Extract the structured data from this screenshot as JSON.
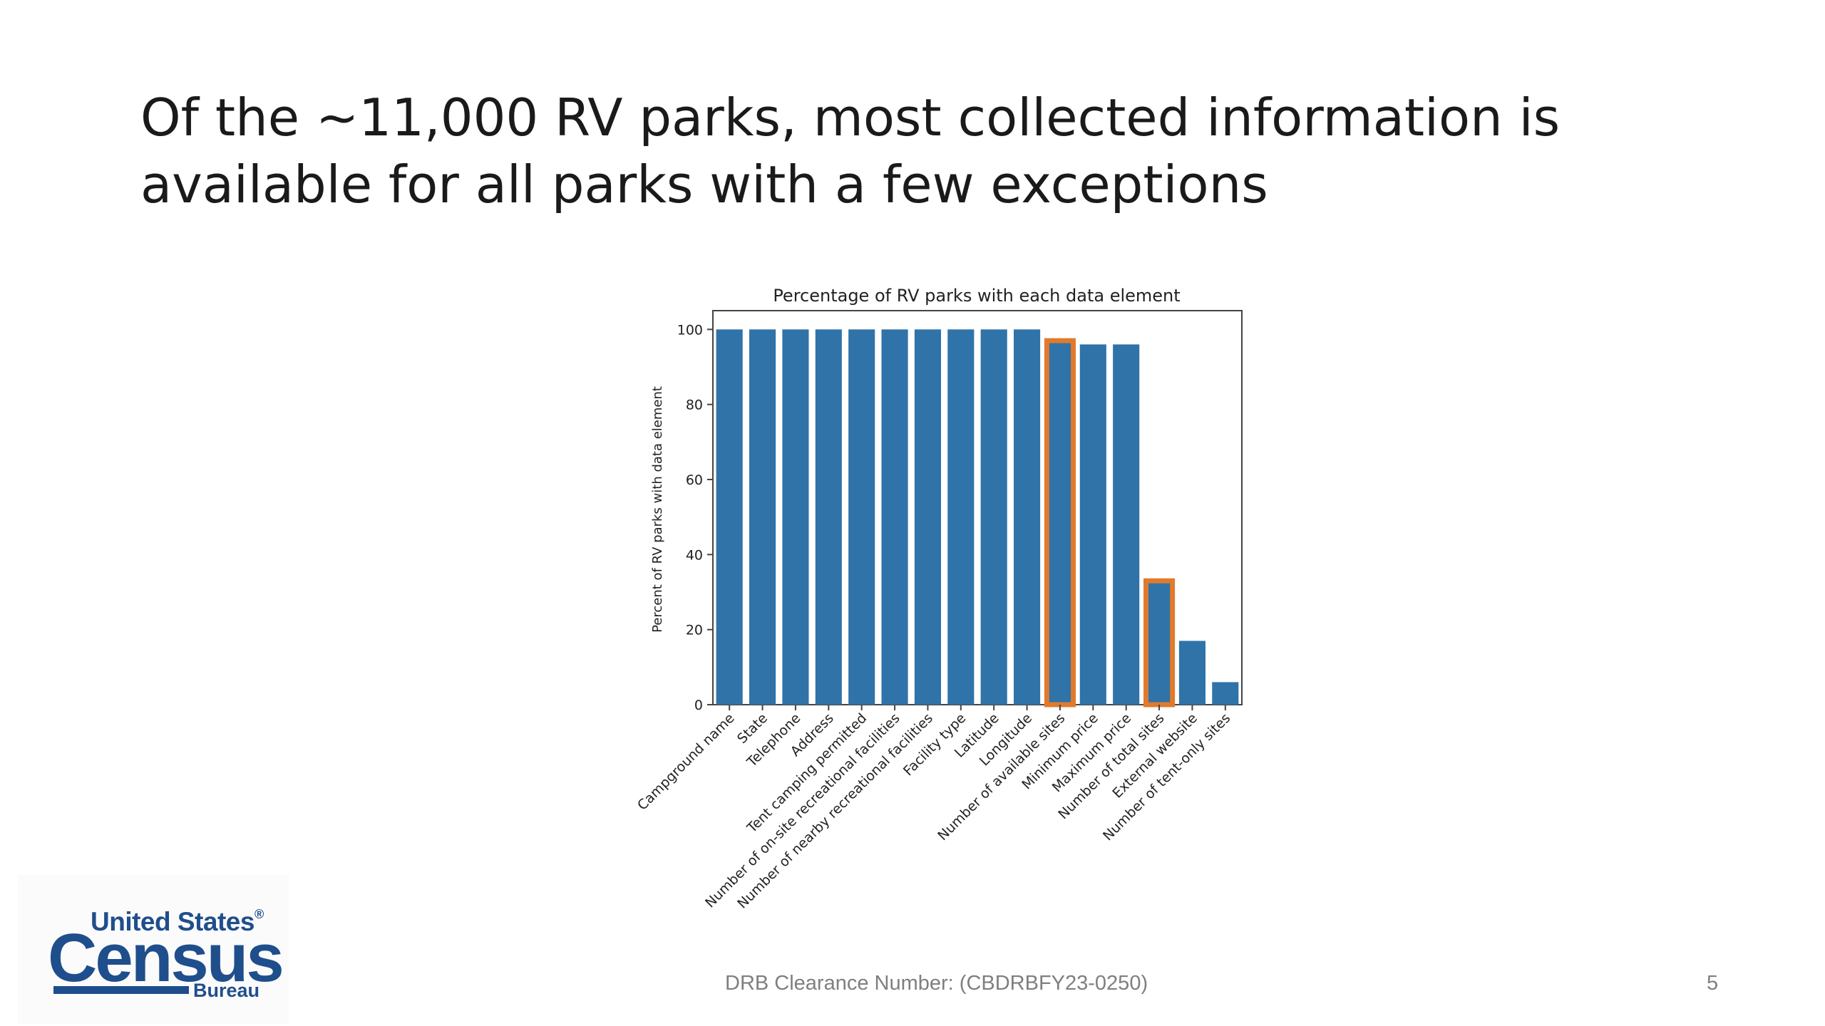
{
  "slide": {
    "title_line1": "Of the ~11,000 RV parks, most collected information is",
    "title_line2": "available for all parks with a few exceptions",
    "clearance": "DRB Clearance Number: (CBDRBFY23-0250)",
    "page_number": "5"
  },
  "logo": {
    "top_text": "United States",
    "registered_mark": "®",
    "main_text": "Census",
    "sub_text": "Bureau"
  },
  "colors": {
    "bar": "#2f73a8",
    "highlight": "#e07a2d",
    "logo": "#1f4e8c"
  },
  "chart_data": {
    "type": "bar",
    "title": "Percentage of RV parks with each data element",
    "xlabel": "",
    "ylabel": "Percent of RV parks with data element",
    "ylim": [
      0,
      105
    ],
    "yticks": [
      0,
      20,
      40,
      60,
      80,
      100
    ],
    "grid": false,
    "categories": [
      "Campground name",
      "State",
      "Telephone",
      "Address",
      "Tent camping permitted",
      "Number of on-site recreational facilities",
      "Number of nearby recreational facilities",
      "Facility type",
      "Latitude",
      "Longitude",
      "Number of available sites",
      "Minimum price",
      "Maximum price",
      "Number of total sites",
      "External website",
      "Number of tent-only sites"
    ],
    "values": [
      100,
      100,
      100,
      100,
      100,
      100,
      100,
      100,
      100,
      100,
      97,
      96,
      96,
      33,
      17,
      6
    ],
    "highlighted": [
      "Number of available sites",
      "Number of total sites"
    ]
  }
}
